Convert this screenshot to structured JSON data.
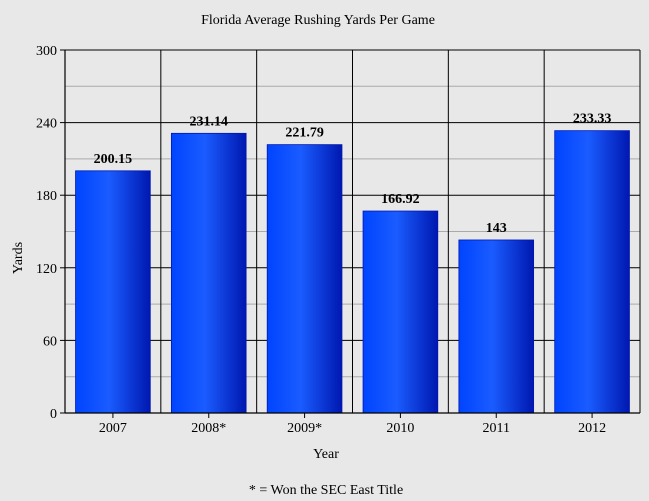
{
  "chart_data": {
    "type": "bar",
    "title": "Florida Average Rushing Yards Per Game",
    "xlabel": "Year",
    "ylabel": "Yards",
    "categories": [
      "2007",
      "2008*",
      "2009*",
      "2010",
      "2011",
      "2012"
    ],
    "values": [
      200.15,
      231.14,
      221.79,
      166.92,
      143,
      233.33
    ],
    "value_labels": [
      "200.15",
      "231.14",
      "221.79",
      "166.92",
      "143",
      "233.33"
    ],
    "ylim": [
      0,
      300
    ],
    "yticks": [
      0,
      60,
      120,
      180,
      240,
      300
    ],
    "minor_grid_step": 30,
    "grid": true,
    "legend": null,
    "footnote": "* = Won the SEC East Title",
    "colors": {
      "bar_dark": "#0018b0",
      "bar_mid": "#0044ff",
      "bar_light": "#1a5cff",
      "background": "#e8e8e8",
      "grid_major": "#000000",
      "grid_minor": "#aaaaaa"
    }
  }
}
